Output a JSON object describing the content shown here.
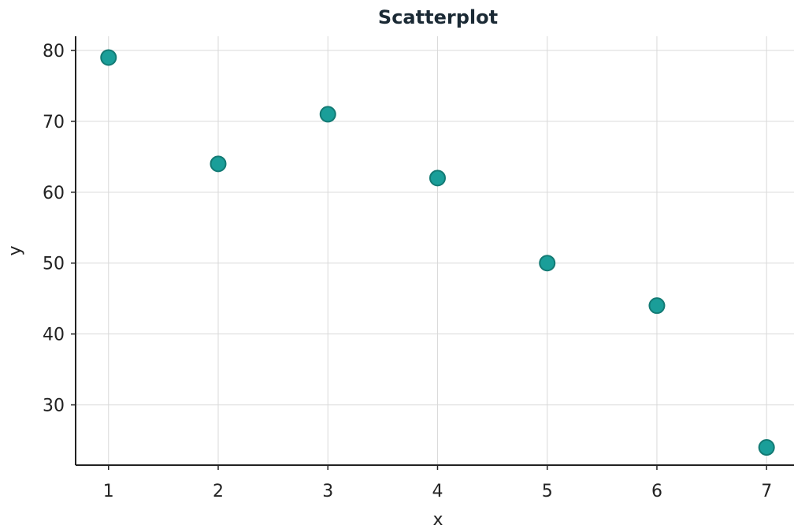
{
  "chart_data": {
    "type": "scatter",
    "title": "Scatterplot",
    "xlabel": "x",
    "ylabel": "y",
    "x": [
      1,
      2,
      3,
      4,
      5,
      6,
      7
    ],
    "y": [
      79,
      64,
      71,
      62,
      50,
      44,
      24
    ],
    "xlim": [
      0.7,
      7.25
    ],
    "ylim": [
      21.5,
      82
    ],
    "xticks": [
      1,
      2,
      3,
      4,
      5,
      6,
      7
    ],
    "yticks": [
      30,
      40,
      50,
      60,
      70,
      80
    ],
    "grid": true,
    "legend": "none",
    "colors": {
      "point_fill": "#1a9e99",
      "point_edge": "#137a74",
      "title": "#1b2a35",
      "axis": "#222222",
      "grid": "#d9d9d9"
    }
  }
}
